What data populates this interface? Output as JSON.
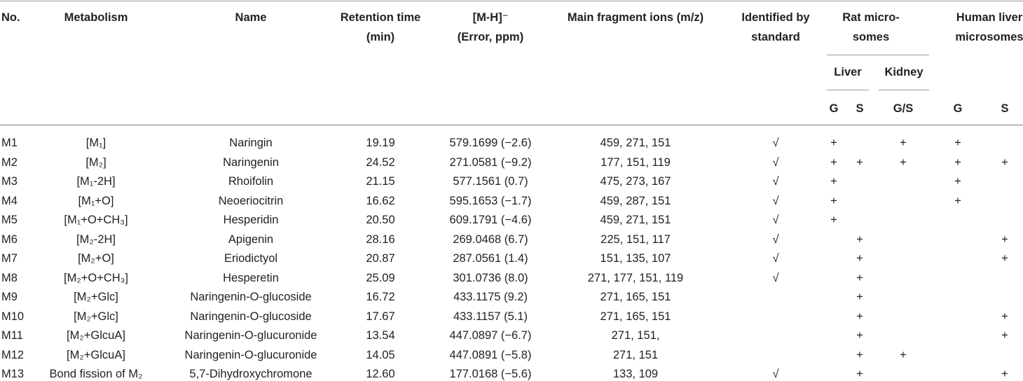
{
  "header": {
    "no": [
      "No."
    ],
    "metabolism": [
      "Metabolism"
    ],
    "name": [
      "Name"
    ],
    "retention": [
      "Retention time",
      "(min)"
    ],
    "mz": [
      "[M-H]⁻",
      "(Error, ppm)"
    ],
    "fragments": [
      "Main fragment ions (m/z)"
    ],
    "identified": [
      "Identified by",
      "standard"
    ],
    "rat": [
      "Rat micro-",
      "somes"
    ],
    "human": [
      "Human liver",
      "microsomes"
    ],
    "liver": "Liver",
    "kidney": "Kidney",
    "rat_liver_g": "G",
    "rat_liver_s": "S",
    "rat_kidney_gs": "G/S",
    "human_g": "G",
    "human_s": "S"
  },
  "table": {
    "rows": [
      {
        "no": "M1",
        "metabolism": "[M₁]",
        "name": "Naringin",
        "retention": "19.19",
        "mz": "579.1699 (−2.6)",
        "fragments": "459, 271, 151",
        "identified": "√",
        "rat_liver_g": "+",
        "rat_kidney_gs": "+",
        "human_g": "+"
      },
      {
        "no": "M2",
        "metabolism": "[M₂]",
        "name": "Naringenin",
        "retention": "24.52",
        "mz": "271.0581 (−9.2)",
        "fragments": "177, 151, 119",
        "identified": "√",
        "rat_liver_g": "+",
        "rat_liver_s": "+",
        "rat_kidney_gs": "+",
        "human_g": "+",
        "human_s": "+"
      },
      {
        "no": "M3",
        "metabolism": "[M₁-2H]",
        "name": "Rhoifolin",
        "retention": "21.15",
        "mz": "577.1561 (0.7)",
        "fragments": "475, 273, 167",
        "identified": "√",
        "rat_liver_g": "+",
        "human_g": "+"
      },
      {
        "no": "M4",
        "metabolism": "[M₁+O]",
        "name": "Neoeriocitrin",
        "retention": "16.62",
        "mz": "595.1653 (−1.7)",
        "fragments": "459, 287, 151",
        "identified": "√",
        "rat_liver_g": "+",
        "human_g": "+"
      },
      {
        "no": "M5",
        "metabolism": "[M₁+O+CH₃]",
        "name": "Hesperidin",
        "retention": "20.50",
        "mz": "609.1791 (−4.6)",
        "fragments": "459, 271, 151",
        "identified": "√",
        "rat_liver_g": "+"
      },
      {
        "no": "M6",
        "metabolism": "[M₂-2H]",
        "name": "Apigenin",
        "retention": "28.16",
        "mz": "269.0468 (6.7)",
        "fragments": "225, 151, 117",
        "identified": "√",
        "rat_liver_s": "+",
        "human_s": "+"
      },
      {
        "no": "M7",
        "metabolism": "[M₂+O]",
        "name": "Eriodictyol",
        "retention": "20.87",
        "mz": "287.0561 (1.4)",
        "fragments": "151, 135, 107",
        "identified": "√",
        "rat_liver_s": "+",
        "human_s": "+"
      },
      {
        "no": "M8",
        "metabolism": "[M₂+O+CH₃]",
        "name": "Hesperetin",
        "retention": "25.09",
        "mz": "301.0736 (8.0)",
        "fragments": "271, 177, 151, 119",
        "identified": "√",
        "rat_liver_s": "+"
      },
      {
        "no": "M9",
        "metabolism": "[M₂+Glc]",
        "name": "Naringenin-O-glucoside",
        "retention": "16.72",
        "mz": "433.1175 (9.2)",
        "fragments": "271, 165, 151",
        "rat_liver_s": "+"
      },
      {
        "no": "M10",
        "metabolism": "[M₂+Glc]",
        "name": "Naringenin-O-glucoside",
        "retention": "17.67",
        "mz": "433.1157 (5.1)",
        "fragments": "271, 165, 151",
        "rat_liver_s": "+",
        "human_s": "+"
      },
      {
        "no": "M11",
        "metabolism": "[M₂+GlcuA]",
        "name": "Naringenin-O-glucuronide",
        "retention": "13.54",
        "mz": "447.0897 (−6.7)",
        "fragments": "271, 151,",
        "rat_liver_s": "+",
        "human_s": "+"
      },
      {
        "no": "M12",
        "metabolism": "[M₂+GlcuA]",
        "name": "Naringenin-O-glucuronide",
        "retention": "14.05",
        "mz": "447.0891 (−5.8)",
        "fragments": "271, 151",
        "rat_liver_s": "+",
        "rat_kidney_gs": "+"
      },
      {
        "no": "M13",
        "metabolism": "Bond fission of M₂",
        "name": "5,7-Dihydroxychromone",
        "retention": "12.60",
        "mz": "177.0168 (−5.6)",
        "fragments": "133, 109",
        "identified": "√",
        "rat_liver_s": "+",
        "human_s": "+"
      }
    ]
  }
}
